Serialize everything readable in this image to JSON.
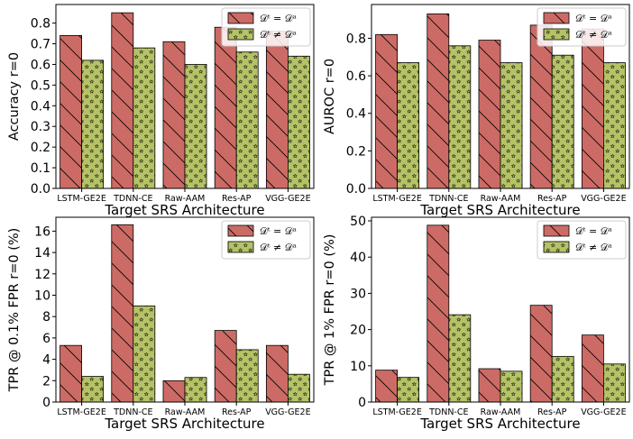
{
  "chart_data": [
    {
      "type": "bar",
      "categories": [
        "LSTM-GE2E",
        "TDNN-CE",
        "Raw-AAM",
        "Res-AP",
        "VGG-GE2E"
      ],
      "series": [
        {
          "name": "𝒟ᵗ = 𝒟ᵃ",
          "values": [
            0.74,
            0.85,
            0.71,
            0.78,
            0.76
          ],
          "color": "#cc6b65",
          "hatch": "backslash"
        },
        {
          "name": "𝒟ᵗ ≠ 𝒟ᵃ",
          "values": [
            0.62,
            0.68,
            0.6,
            0.66,
            0.64
          ],
          "color": "#b5c266",
          "hatch": "stars"
        }
      ],
      "xlabel": "Target SRS Architecture",
      "ylabel": "Accuracy r=0",
      "ylim": [
        0,
        0.89
      ],
      "yticks": [
        "0.0",
        "0.1",
        "0.2",
        "0.3",
        "0.4",
        "0.5",
        "0.6",
        "0.7",
        "0.8"
      ],
      "legend": "top-right",
      "grid": false
    },
    {
      "type": "bar",
      "categories": [
        "LSTM-GE2E",
        "TDNN-CE",
        "Raw-AAM",
        "Res-AP",
        "VGG-GE2E"
      ],
      "series": [
        {
          "name": "𝒟ᵗ = 𝒟ᵃ",
          "values": [
            0.82,
            0.93,
            0.79,
            0.87,
            0.85
          ],
          "color": "#cc6b65",
          "hatch": "backslash"
        },
        {
          "name": "𝒟ᵗ ≠ 𝒟ᵃ",
          "values": [
            0.67,
            0.76,
            0.67,
            0.71,
            0.67
          ],
          "color": "#b5c266",
          "hatch": "stars"
        }
      ],
      "xlabel": "Target SRS Architecture",
      "ylabel": "AUROC r=0",
      "ylim": [
        0,
        0.98
      ],
      "yticks": [
        "0.0",
        "0.2",
        "0.4",
        "0.6",
        "0.8"
      ],
      "legend": "top-right",
      "grid": false
    },
    {
      "type": "bar",
      "categories": [
        "LSTM-GE2E",
        "TDNN-CE",
        "Raw-AAM",
        "Res-AP",
        "VGG-GE2E"
      ],
      "series": [
        {
          "name": "𝒟ᵗ = 𝒟ᵃ",
          "values": [
            5.3,
            16.6,
            2.0,
            6.7,
            5.3
          ],
          "color": "#cc6b65",
          "hatch": "backslash"
        },
        {
          "name": "𝒟ᵗ ≠ 𝒟ᵃ",
          "values": [
            2.4,
            9.0,
            2.3,
            4.9,
            2.6
          ],
          "color": "#b5c266",
          "hatch": "stars"
        }
      ],
      "xlabel": "Target SRS Architecture",
      "ylabel": "TPR @ 0.1% FPR r=0 (%)",
      "ylim": [
        0,
        17.3
      ],
      "yticks": [
        "0",
        "2",
        "4",
        "6",
        "8",
        "10",
        "12",
        "14",
        "16"
      ],
      "legend": "top-right",
      "grid": false
    },
    {
      "type": "bar",
      "categories": [
        "LSTM-GE2E",
        "TDNN-CE",
        "Raw-AAM",
        "Res-AP",
        "VGG-GE2E"
      ],
      "series": [
        {
          "name": "𝒟ᵗ = 𝒟ᵃ",
          "values": [
            8.8,
            48.8,
            9.2,
            26.7,
            18.5
          ],
          "color": "#cc6b65",
          "hatch": "backslash"
        },
        {
          "name": "𝒟ᵗ ≠ 𝒟ᵃ",
          "values": [
            6.8,
            24.1,
            8.5,
            12.6,
            10.5
          ],
          "color": "#b5c266",
          "hatch": "stars"
        }
      ],
      "xlabel": "Target SRS Architecture",
      "ylabel": "TPR @ 1% FPR r=0 (%)",
      "ylim": [
        0,
        51
      ],
      "yticks": [
        "0",
        "10",
        "20",
        "30",
        "40",
        "50"
      ],
      "legend": "top-right",
      "grid": false
    }
  ]
}
